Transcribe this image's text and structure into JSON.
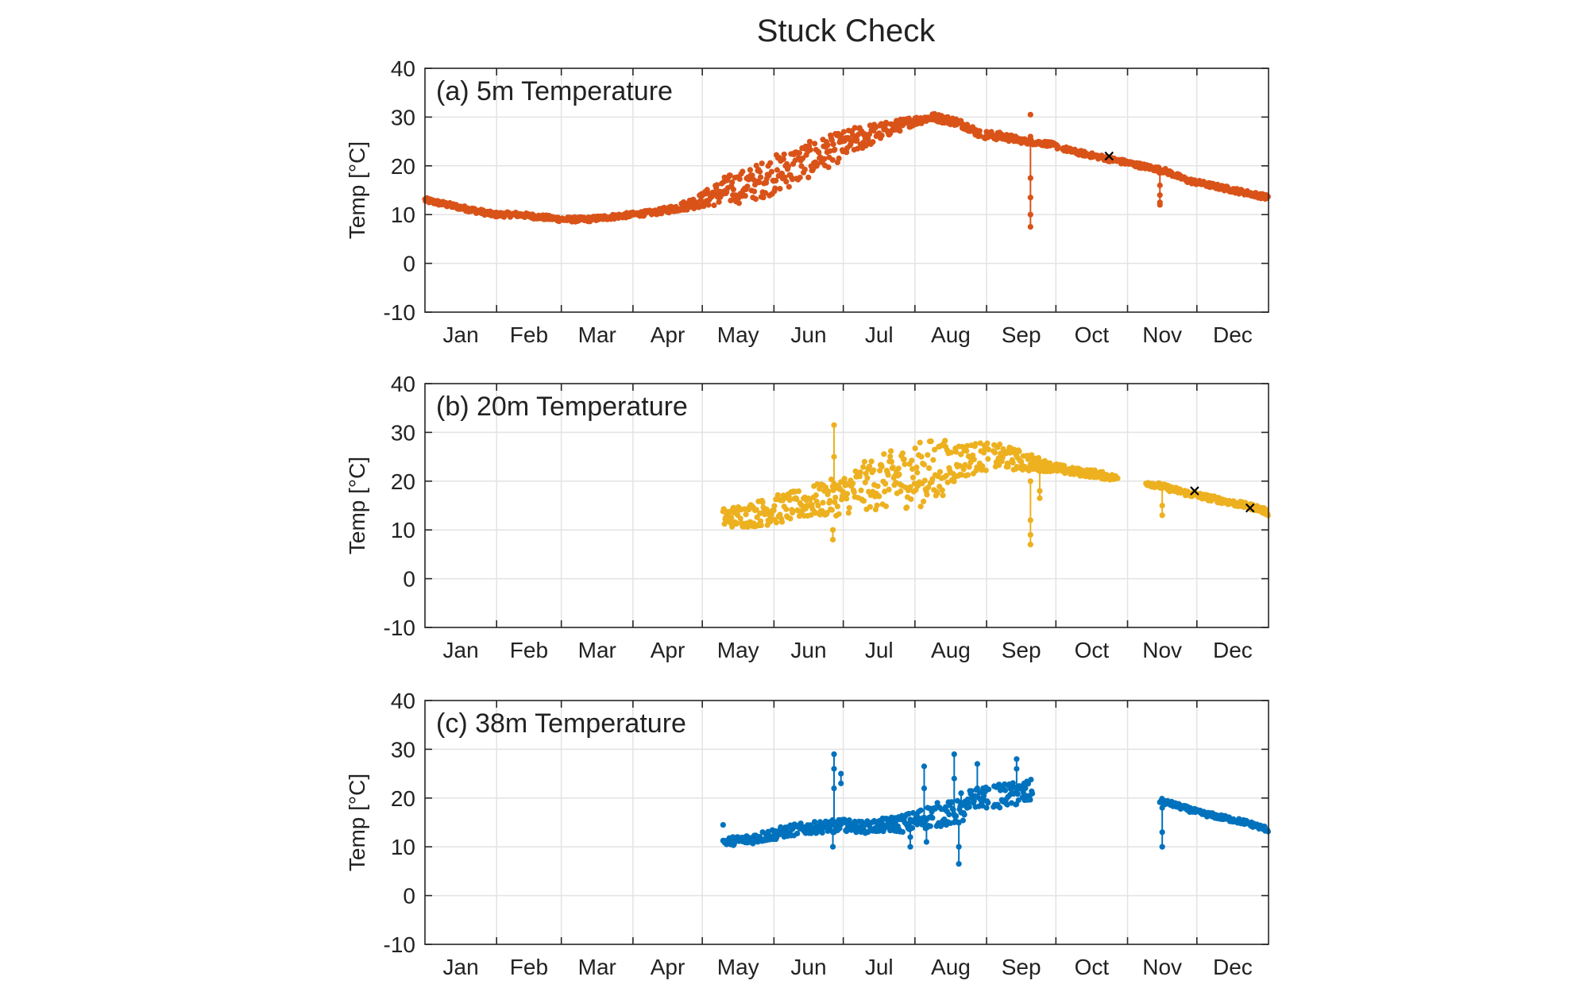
{
  "title": "Stuck Check",
  "colors": {
    "series_5m": "#D95319",
    "series_20m": "#EDB120",
    "series_38m": "#0072BD",
    "flag_marker": "#000000",
    "grid": "#E3E3E3",
    "axis": "#262626"
  },
  "chart_data": [
    {
      "type": "scatter",
      "title": "(a) 5m Temperature",
      "ylabel": "Temp [°C]",
      "xlabel": "",
      "x_unit": "day of year",
      "ylim": [
        -10,
        40
      ],
      "yticks": [
        "-10",
        "0",
        "10",
        "20",
        "30",
        "40"
      ],
      "xlim": [
        0,
        365
      ],
      "month_labels": [
        "Jan",
        "Feb",
        "Mar",
        "Apr",
        "May",
        "Jun",
        "Jul",
        "Aug",
        "Sep",
        "Oct",
        "Nov",
        "Dec"
      ],
      "grid": true,
      "series": [
        {
          "color": "#D95319",
          "x": [
            0,
            10,
            20,
            30,
            40,
            50,
            60,
            70,
            80,
            90,
            100,
            110,
            120,
            130,
            140,
            150,
            160,
            170,
            180,
            190,
            200,
            210,
            215,
            220,
            230,
            235,
            240,
            250,
            260,
            270,
            280,
            290,
            300,
            310,
            320,
            330,
            340,
            350,
            360,
            365
          ],
          "y": [
            13,
            12,
            11,
            10,
            10,
            9.5,
            9,
            9,
            9.5,
            10,
            10.5,
            11.5,
            13,
            15,
            16,
            18,
            20,
            22,
            24,
            26,
            27.5,
            29,
            29.5,
            30,
            29,
            28,
            26.5,
            26,
            25,
            24.5,
            23,
            22,
            21,
            20,
            19,
            17,
            16,
            15,
            14,
            13.5
          ],
          "spread": [
            0.5,
            0.5,
            0.5,
            0.5,
            0.5,
            0.5,
            0.5,
            0.5,
            0.5,
            0.5,
            0.5,
            0.8,
            1.5,
            3,
            3.5,
            4,
            4,
            3.5,
            3,
            2.5,
            1.5,
            1,
            0.8,
            0.8,
            0.8,
            0.8,
            0.8,
            0.8,
            0.5,
            0.5,
            0.5,
            0.5,
            0.5,
            0.5,
            0.5,
            0.5,
            0.5,
            0.5,
            0.5,
            0.5
          ],
          "gaps": [
            [
              240.5,
              242
            ],
            [
              274,
              276
            ]
          ],
          "spikes": [
            {
              "x": 262,
              "y": [
                26,
                17.5,
                13.5,
                10,
                7.5
              ]
            },
            {
              "x": 262,
              "y": [
                30.5
              ]
            },
            {
              "x": 318,
              "y": [
                18.5,
                16,
                14,
                12.5,
                12
              ]
            }
          ]
        }
      ],
      "flags": [
        {
          "x": 296,
          "y": 22
        }
      ]
    },
    {
      "type": "scatter",
      "title": "(b) 20m Temperature",
      "ylabel": "Temp [°C]",
      "xlabel": "",
      "x_unit": "day of year",
      "ylim": [
        -10,
        40
      ],
      "yticks": [
        "-10",
        "0",
        "10",
        "20",
        "30",
        "40"
      ],
      "xlim": [
        0,
        365
      ],
      "month_labels": [
        "Jan",
        "Feb",
        "Mar",
        "Apr",
        "May",
        "Jun",
        "Jul",
        "Aug",
        "Sep",
        "Oct",
        "Nov",
        "Dec"
      ],
      "grid": true,
      "series": [
        {
          "color": "#EDB120",
          "x": [
            129,
            140,
            150,
            160,
            170,
            180,
            190,
            200,
            210,
            220,
            230,
            240,
            250,
            260,
            270,
            280,
            290,
            300,
            310,
            318,
            330,
            340,
            350,
            360,
            365
          ],
          "y": [
            12.5,
            13,
            14,
            15,
            16,
            17,
            19,
            20,
            21,
            22,
            24,
            25,
            25,
            24,
            23,
            22,
            21.5,
            20.5,
            20,
            19,
            17.5,
            16.5,
            15.5,
            14.5,
            13.5
          ],
          "spread": [
            2,
            2.5,
            3,
            3,
            3.5,
            4,
            5,
            6,
            6.5,
            7,
            4,
            3,
            2.5,
            2,
            1,
            0.8,
            0.8,
            0.6,
            0.6,
            0.6,
            0.6,
            0.6,
            0.6,
            0.6,
            0.6
          ],
          "gaps": [
            [
              244,
              246
            ],
            [
              300,
              312
            ]
          ],
          "spikes": [
            {
              "x": 177,
              "y": [
                19,
                25,
                31.5
              ]
            },
            {
              "x": 176.5,
              "y": [
                10,
                8
              ]
            },
            {
              "x": 262,
              "y": [
                20,
                12,
                9,
                7
              ]
            },
            {
              "x": 266,
              "y": [
                24,
                18,
                16.5
              ]
            },
            {
              "x": 319,
              "y": [
                19,
                15,
                13
              ]
            }
          ]
        }
      ],
      "flags": [
        {
          "x": 333,
          "y": 18
        },
        {
          "x": 357,
          "y": 14.5
        }
      ]
    },
    {
      "type": "scatter",
      "title": "(c) 38m Temperature",
      "ylabel": "Temp [°C]",
      "xlabel": "",
      "x_unit": "day of year",
      "ylim": [
        -10,
        40
      ],
      "yticks": [
        "-10",
        "0",
        "10",
        "20",
        "30",
        "40"
      ],
      "xlim": [
        0,
        365
      ],
      "month_labels": [
        "Jan",
        "Feb",
        "Mar",
        "Apr",
        "May",
        "Jun",
        "Jul",
        "Aug",
        "Sep",
        "Oct",
        "Nov",
        "Dec"
      ],
      "grid": true,
      "series": [
        {
          "color": "#0072BD",
          "x": [
            129,
            140,
            150,
            160,
            170,
            180,
            190,
            200,
            210,
            220,
            230,
            235,
            236,
            240,
            250,
            260,
            263
          ],
          "y": [
            11,
            11.5,
            12.5,
            13.5,
            14,
            14.5,
            14,
            14.5,
            15,
            16.5,
            17,
            17.5,
            20,
            20,
            20.5,
            21,
            21.5
          ],
          "spread": [
            0.8,
            1,
            1.2,
            1.2,
            1.2,
            1.2,
            1.2,
            1.5,
            2,
            2.5,
            2.5,
            2.5,
            2,
            2,
            2.5,
            2.5,
            2.5
          ],
          "gaps": [
            [
              244,
              246
            ]
          ]
        },
        {
          "color": "#0072BD",
          "x": [
            318,
            325,
            335,
            345,
            355,
            365
          ],
          "y": [
            19.5,
            18.5,
            17,
            16,
            15,
            13.5
          ],
          "spread": [
            0.5,
            0.5,
            0.5,
            0.5,
            0.5,
            0.5
          ],
          "gaps": []
        }
      ],
      "spikes": [
        {
          "x": 129,
          "y": [
            14.5
          ]
        },
        {
          "x": 177,
          "y": [
            13,
            22,
            26,
            29
          ]
        },
        {
          "x": 176.5,
          "y": [
            13,
            10
          ]
        },
        {
          "x": 180,
          "y": [
            23,
            25
          ]
        },
        {
          "x": 210,
          "y": [
            15,
            12,
            10
          ]
        },
        {
          "x": 216,
          "y": [
            16,
            22,
            26.5
          ]
        },
        {
          "x": 217,
          "y": [
            14,
            11
          ]
        },
        {
          "x": 229,
          "y": [
            15,
            24,
            29
          ]
        },
        {
          "x": 231,
          "y": [
            15,
            10,
            6.5
          ]
        },
        {
          "x": 232,
          "y": [
            17,
            21
          ]
        },
        {
          "x": 239,
          "y": [
            22,
            27
          ]
        },
        {
          "x": 256,
          "y": [
            22,
            26,
            28
          ]
        },
        {
          "x": 319,
          "y": [
            18,
            13,
            10
          ]
        }
      ]
    }
  ]
}
